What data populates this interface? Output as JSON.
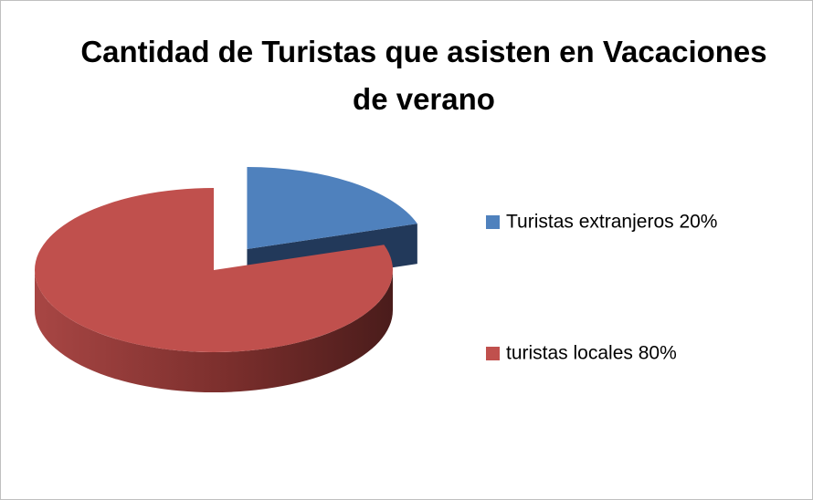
{
  "chart_data": {
    "type": "pie",
    "title": "Cantidad de Turistas que asisten en Vacaciones de verano",
    "categories": [
      "Turistas extranjeros 20%",
      "turistas locales 80%"
    ],
    "values": [
      20,
      80
    ],
    "colors": [
      "#4f81bd",
      "#c0504d"
    ],
    "legend": "right"
  }
}
